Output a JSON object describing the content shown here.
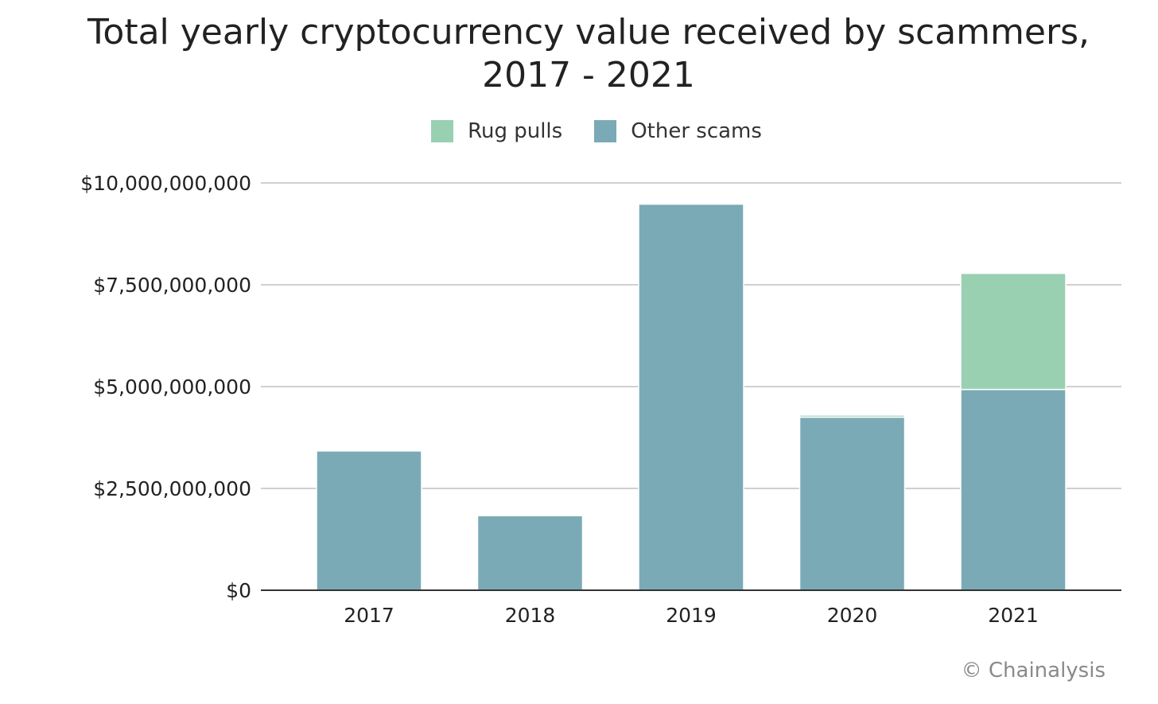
{
  "chart_data": {
    "type": "bar",
    "stacked": true,
    "title": "Total yearly cryptocurrency value received by scammers, 2017 - 2021",
    "xlabel": "",
    "ylabel": "",
    "categories": [
      "2017",
      "2018",
      "2019",
      "2020",
      "2021"
    ],
    "series": [
      {
        "name": "Other scams",
        "color": "#7aaab5",
        "values": [
          3420000000,
          1830000000,
          9480000000,
          4250000000,
          4930000000
        ]
      },
      {
        "name": "Rug pulls",
        "color": "#98d0b1",
        "values": [
          0,
          0,
          0,
          50000000,
          2850000000
        ]
      }
    ],
    "legend_order": [
      "Rug pulls",
      "Other scams"
    ],
    "legend_position": "top-center",
    "ylim": [
      0,
      10000000000
    ],
    "yticks": [
      0,
      2500000000,
      5000000000,
      7500000000,
      10000000000
    ],
    "ytick_labels": [
      "$0",
      "$2,500,000,000",
      "$5,000,000,000",
      "$7,500,000,000",
      "$10,000,000,000"
    ],
    "grid": true
  },
  "credit": "© Chainalysis"
}
